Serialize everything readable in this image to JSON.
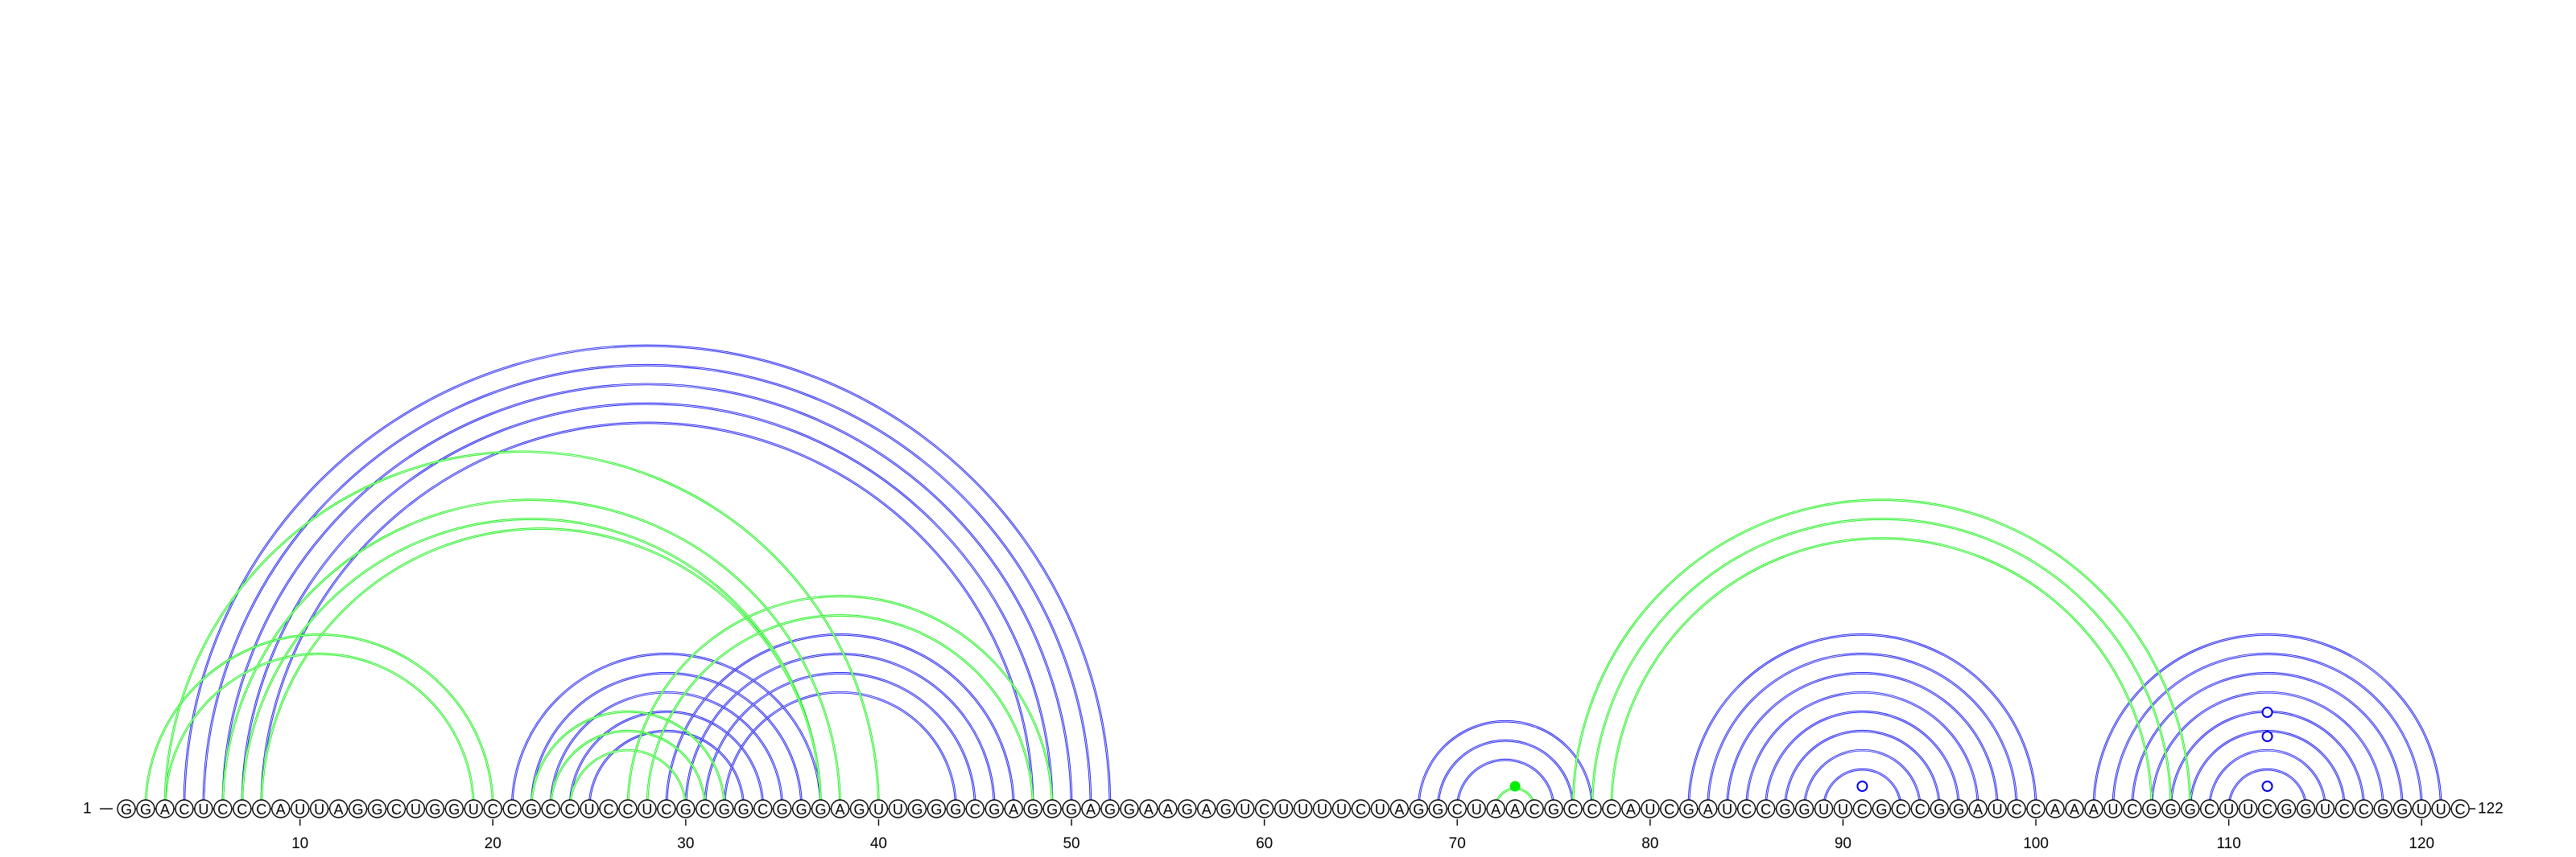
{
  "diagram": {
    "type": "rna-arc-diagram",
    "sequence": "GGACUCCCAUUAGGCUGGUCCGCCUCCUCGCGGCGGGAGUUGGGCGAGGGAGGAAGAGUCUUUUCUAGGCUAACGCCCAUCGAUCCGGUUCGCCGGAUCCAAAUCGGGCUUCGGUCCGGUUC",
    "start_label": "1",
    "end_label": "122",
    "ticks": [
      10,
      20,
      30,
      40,
      50,
      60,
      70,
      80,
      90,
      100,
      110,
      120
    ],
    "colors": {
      "blue": "#0000ee",
      "green": "#00ee00"
    },
    "blue_helices": [
      {
        "i": 4,
        "j": 52,
        "len": 5
      },
      {
        "i": 21,
        "j": 37,
        "len": 5
      },
      {
        "i": 29,
        "j": 47,
        "len": 4
      },
      {
        "i": 68,
        "j": 77,
        "len": 3
      },
      {
        "i": 82,
        "j": 100,
        "len": 8
      },
      {
        "i": 103,
        "j": 121,
        "len": 8
      }
    ],
    "green_helices": [
      {
        "i": 2,
        "j": 20,
        "len": 2
      },
      {
        "i": 3,
        "j": 40,
        "len": 1
      },
      {
        "i": 6,
        "j": 38,
        "len": 2
      },
      {
        "i": 8,
        "j": 37,
        "len": 1
      },
      {
        "i": 22,
        "j": 32,
        "len": 3
      },
      {
        "i": 27,
        "j": 49,
        "len": 2
      },
      {
        "i": 72,
        "j": 74,
        "len": 1
      },
      {
        "i": 76,
        "j": 108,
        "len": 3
      }
    ],
    "marked_bases": [
      {
        "pos": 73,
        "style": "filled-green"
      },
      {
        "pos": 91,
        "style": "open-blue"
      },
      {
        "pos": 112,
        "style": "open-blue"
      }
    ]
  }
}
